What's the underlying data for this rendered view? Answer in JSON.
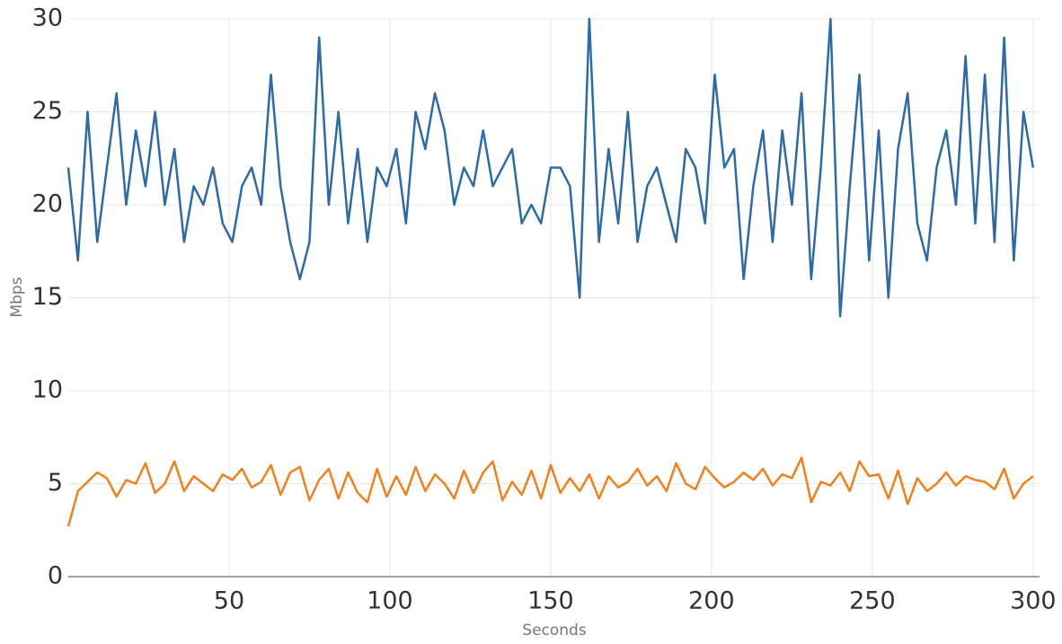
{
  "chart_data": {
    "type": "line",
    "x_label": "Seconds",
    "y_label": "Mbps",
    "x": [
      0,
      3,
      6,
      9,
      12,
      15,
      18,
      21,
      24,
      27,
      30,
      33,
      36,
      39,
      42,
      45,
      48,
      51,
      54,
      57,
      60,
      63,
      66,
      69,
      72,
      75,
      78,
      81,
      84,
      87,
      90,
      93,
      96,
      99,
      102,
      105,
      108,
      111,
      114,
      117,
      120,
      123,
      126,
      129,
      132,
      135,
      138,
      141,
      144,
      147,
      150,
      153,
      156,
      159,
      162,
      165,
      168,
      171,
      174,
      177,
      180,
      183,
      186,
      189,
      192,
      195,
      198,
      201,
      204,
      207,
      210,
      213,
      216,
      219,
      222,
      225,
      228,
      231,
      234,
      237,
      240,
      243,
      246,
      249,
      252,
      255,
      258,
      261,
      264,
      267,
      270,
      273,
      276,
      279,
      282,
      285,
      288,
      291,
      294,
      297,
      300
    ],
    "series": [
      {
        "color": "#2d6aa8",
        "values": [
          22,
          17,
          25,
          18,
          22,
          26,
          20,
          24,
          21,
          25,
          20,
          23,
          18,
          21,
          20,
          22,
          19,
          18,
          21,
          22,
          20,
          27,
          21,
          18,
          16,
          18,
          29,
          20,
          25,
          19,
          23,
          18,
          22,
          21,
          23,
          19,
          25,
          23,
          26,
          24,
          20,
          22,
          21,
          24,
          21,
          22,
          23,
          19,
          20,
          19,
          22,
          22,
          21,
          15,
          30,
          18,
          23,
          19,
          25,
          18,
          21,
          22,
          20,
          18,
          23,
          22,
          19,
          27,
          22,
          23,
          16,
          21,
          24,
          18,
          24,
          20,
          26,
          16,
          22,
          30,
          14,
          21,
          27,
          17,
          24,
          15,
          23,
          26,
          19,
          17,
          22,
          24,
          20,
          28,
          19,
          27,
          18,
          29,
          17,
          25,
          22
        ]
      },
      {
        "color": "#f0811c",
        "values": [
          2.7,
          4.6,
          5.1,
          5.6,
          5.3,
          4.3,
          5.2,
          5.0,
          6.1,
          4.5,
          5.0,
          6.2,
          4.6,
          5.4,
          5.0,
          4.6,
          5.5,
          5.2,
          5.8,
          4.8,
          5.1,
          6.0,
          4.4,
          5.6,
          5.9,
          4.1,
          5.2,
          5.8,
          4.2,
          5.6,
          4.5,
          4.0,
          5.8,
          4.3,
          5.4,
          4.4,
          5.9,
          4.6,
          5.5,
          5.0,
          4.2,
          5.7,
          4.5,
          5.6,
          6.2,
          4.1,
          5.1,
          4.4,
          5.7,
          4.2,
          6.0,
          4.5,
          5.3,
          4.6,
          5.5,
          4.2,
          5.4,
          4.8,
          5.1,
          5.8,
          4.9,
          5.4,
          4.6,
          6.1,
          5.0,
          4.7,
          5.9,
          5.3,
          4.8,
          5.1,
          5.6,
          5.2,
          5.8,
          4.9,
          5.5,
          5.3,
          6.4,
          4.0,
          5.1,
          4.9,
          5.6,
          4.6,
          6.2,
          5.4,
          5.5,
          4.2,
          5.7,
          3.9,
          5.3,
          4.6,
          5.0,
          5.6,
          4.9,
          5.4,
          5.2,
          5.1,
          4.7,
          5.8,
          4.2,
          5.0,
          5.4
        ]
      }
    ],
    "xlim": [
      0,
      302
    ],
    "ylim": [
      0,
      30
    ],
    "xticks": [
      50,
      100,
      150,
      200,
      250,
      300
    ],
    "yticks": [
      0,
      5,
      10,
      15,
      20,
      25,
      30
    ],
    "grid": true
  }
}
